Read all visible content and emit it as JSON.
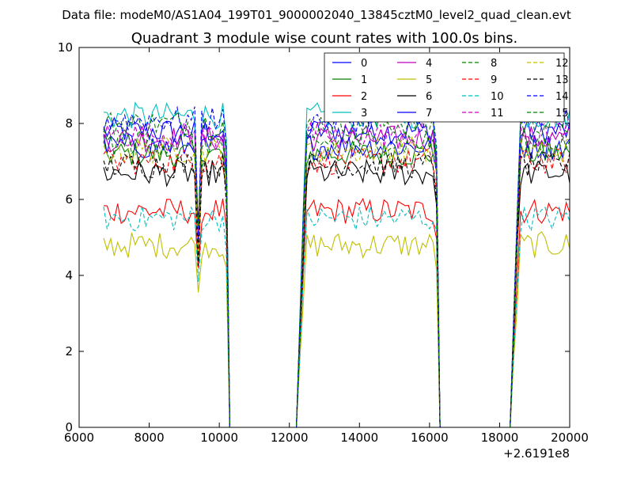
{
  "header": {
    "datafile": "Data file: modeM0/AS1A04_199T01_9000002040_13845cztM0_level2_quad_clean.evt"
  },
  "chart_data": {
    "type": "line",
    "title": "Quadrant 3 module wise count rates with 100.0s bins.",
    "xlabel": "",
    "ylabel": "",
    "xlim": [
      6000,
      20000
    ],
    "ylim": [
      0,
      10
    ],
    "x_ticks": [
      "6000",
      "8000",
      "10000",
      "12000",
      "14000",
      "16000",
      "18000",
      "20000"
    ],
    "y_ticks": [
      "0",
      "2",
      "4",
      "6",
      "8",
      "10"
    ],
    "x_offset_label": "+2.6191e8",
    "legend_position": "top-right",
    "grid": false,
    "segments": [
      {
        "start": 6700,
        "end": 10200,
        "noise": 0.35
      },
      {
        "start": 12300,
        "end": 16200,
        "noise": 0.35
      },
      {
        "start": 18400,
        "end": 20000,
        "noise": 0.35
      }
    ],
    "series": [
      {
        "name": "0",
        "color": "#0000ff",
        "dash": "solid",
        "level": 7.8
      },
      {
        "name": "1",
        "color": "#008000",
        "dash": "solid",
        "level": 7.2
      },
      {
        "name": "2",
        "color": "#ff0000",
        "dash": "solid",
        "level": 5.7
      },
      {
        "name": "3",
        "color": "#00bfbf",
        "dash": "solid",
        "level": 8.2
      },
      {
        "name": "4",
        "color": "#bf00bf",
        "dash": "solid",
        "level": 7.6
      },
      {
        "name": "5",
        "color": "#bfbf00",
        "dash": "solid",
        "level": 4.8
      },
      {
        "name": "6",
        "color": "#000000",
        "dash": "solid",
        "level": 6.7
      },
      {
        "name": "7",
        "color": "#0000ff",
        "dash": "solid",
        "level": 7.4
      },
      {
        "name": "8",
        "color": "#008000",
        "dash": "dashed",
        "level": 8.0
      },
      {
        "name": "9",
        "color": "#ff0000",
        "dash": "dashed",
        "level": 7.0
      },
      {
        "name": "10",
        "color": "#00bfbf",
        "dash": "dashed",
        "level": 5.5
      },
      {
        "name": "11",
        "color": "#bf00bf",
        "dash": "dashed",
        "level": 7.7
      },
      {
        "name": "12",
        "color": "#bfbf00",
        "dash": "dashed",
        "level": 7.3
      },
      {
        "name": "13",
        "color": "#000000",
        "dash": "dashed",
        "level": 6.9
      },
      {
        "name": "14",
        "color": "#0000ff",
        "dash": "dashed",
        "level": 8.1
      },
      {
        "name": "15",
        "color": "#008000",
        "dash": "dashed",
        "level": 7.5
      }
    ]
  }
}
